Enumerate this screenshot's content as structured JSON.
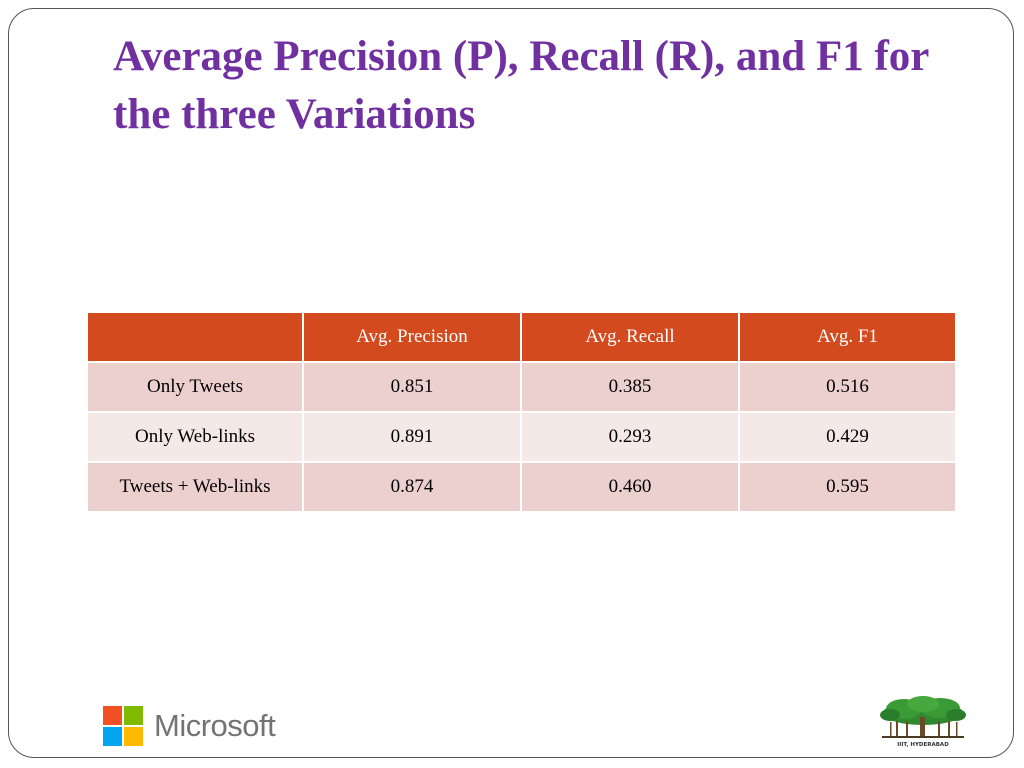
{
  "slide": {
    "title": "Average Precision (P), Recall (R), and F1 for the three Variations"
  },
  "table": {
    "headers": [
      "",
      "Avg. Precision",
      "Avg. Recall",
      "Avg. F1"
    ],
    "rows": [
      [
        "Only Tweets",
        "0.851",
        "0.385",
        "0.516"
      ],
      [
        "Only Web-links",
        "0.891",
        "0.293",
        "0.429"
      ],
      [
        "Tweets + Web-links",
        "0.874",
        "0.460",
        "0.595"
      ]
    ]
  },
  "logos": {
    "microsoft": {
      "text": "Microsoft",
      "colors": [
        "#f25022",
        "#7fba00",
        "#00a4ef",
        "#ffb900"
      ]
    },
    "iiit": {
      "caption": "IIIT, HYDERABAD",
      "icon": "banyan-tree-icon"
    }
  },
  "colors": {
    "title": "#7030a0",
    "header_bg": "#d24a1e",
    "row_dark": "#ecd0ce",
    "row_light": "#f5e9e8"
  }
}
